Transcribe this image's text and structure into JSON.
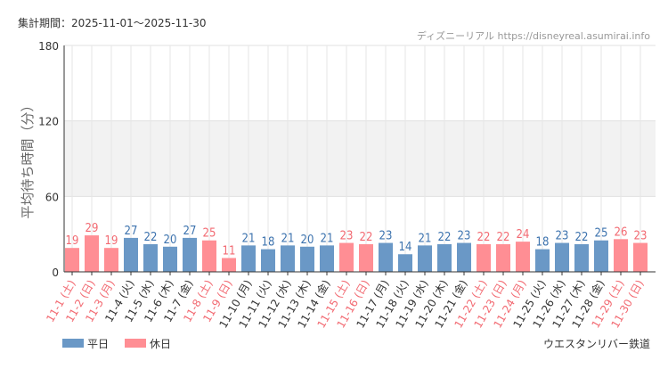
{
  "header": {
    "period": "集計期間：2025-11-01～2025-11-30",
    "site": "ディズニーリアル https://disneyreal.asumirai.info"
  },
  "footer": {
    "attraction": "ウエスタンリバー鉄道"
  },
  "colors": {
    "weekday": "#6a98c6",
    "holiday": "#ff8e94",
    "weekday_text": "#3d73ae",
    "holiday_text": "#f26a72",
    "band": "#f2f2f2"
  },
  "chart_data": {
    "type": "bar",
    "ylabel": "平均待ち時間（分）",
    "ylim": [
      0,
      180
    ],
    "yticks": [
      0,
      60,
      120,
      180
    ],
    "shaded_band": [
      60,
      120
    ],
    "grid": true,
    "legend": {
      "position": "bottom-left",
      "entries": [
        {
          "label": "平日",
          "color": "#6a98c6"
        },
        {
          "label": "休日",
          "color": "#ff8e94"
        }
      ]
    },
    "categories": [
      "11-1 (土)",
      "11-2 (日)",
      "11-3 (月)",
      "11-4 (火)",
      "11-5 (水)",
      "11-6 (木)",
      "11-7 (金)",
      "11-8 (土)",
      "11-9 (日)",
      "11-10 (月)",
      "11-11 (火)",
      "11-12 (水)",
      "11-13 (木)",
      "11-14 (金)",
      "11-15 (土)",
      "11-16 (日)",
      "11-17 (月)",
      "11-18 (火)",
      "11-19 (水)",
      "11-20 (木)",
      "11-21 (金)",
      "11-22 (土)",
      "11-23 (日)",
      "11-24 (月)",
      "11-25 (火)",
      "11-26 (水)",
      "11-27 (木)",
      "11-28 (金)",
      "11-29 (土)",
      "11-30 (日)"
    ],
    "values": [
      19,
      29,
      19,
      27,
      22,
      20,
      27,
      25,
      11,
      21,
      18,
      21,
      20,
      21,
      23,
      22,
      23,
      14,
      21,
      22,
      23,
      22,
      22,
      24,
      18,
      23,
      22,
      25,
      26,
      23
    ],
    "holiday": [
      true,
      true,
      true,
      false,
      false,
      false,
      false,
      true,
      true,
      false,
      false,
      false,
      false,
      false,
      true,
      true,
      false,
      false,
      false,
      false,
      false,
      true,
      true,
      true,
      false,
      false,
      false,
      false,
      true,
      true
    ]
  }
}
